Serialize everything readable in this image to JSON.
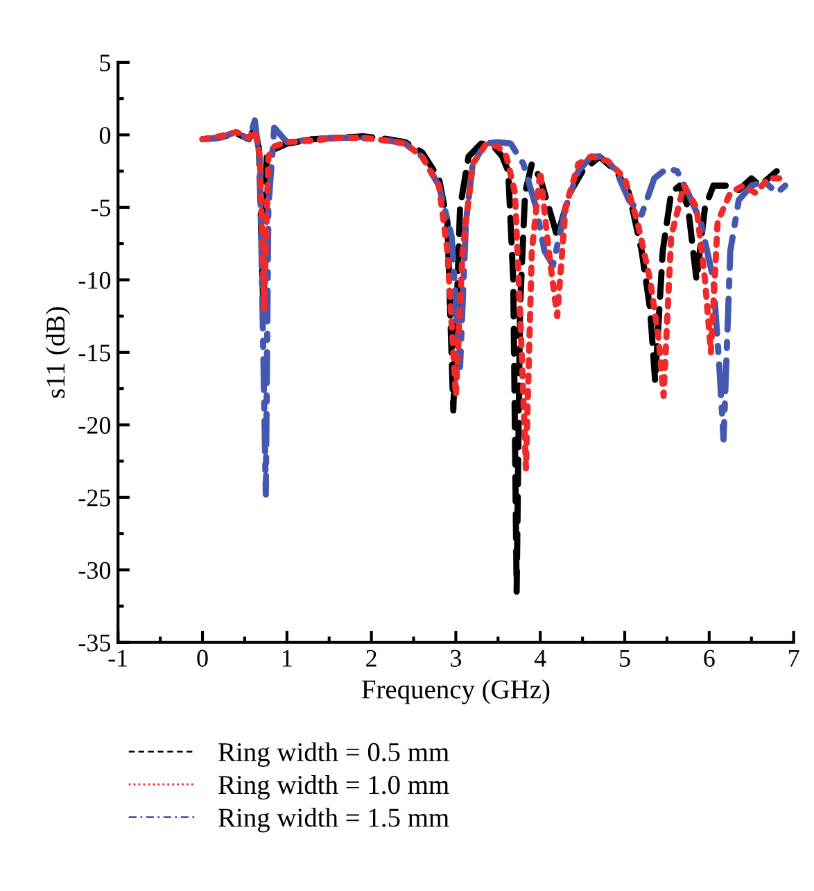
{
  "chart_data": {
    "type": "line",
    "xlabel": "Frequency (GHz)",
    "ylabel": "s11 (dB)",
    "xlim": [
      -1,
      7
    ],
    "ylim": [
      -35,
      5
    ],
    "xticks": [
      -1,
      0,
      1,
      2,
      3,
      4,
      5,
      6,
      7
    ],
    "yticks": [
      -35,
      -30,
      -25,
      -20,
      -15,
      -10,
      -5,
      0,
      5
    ],
    "grid": false,
    "legend": "bottom",
    "series": [
      {
        "name": "Ring width = 0.5 mm",
        "color": "#000000",
        "line_style": "dashed",
        "x": [
          0,
          0.2,
          0.4,
          0.55,
          0.62,
          0.67,
          0.72,
          0.76,
          0.85,
          1.0,
          1.3,
          1.6,
          1.9,
          2.2,
          2.4,
          2.6,
          2.8,
          2.9,
          2.97,
          3.05,
          3.15,
          3.3,
          3.45,
          3.55,
          3.62,
          3.68,
          3.72,
          3.76,
          3.82,
          3.9,
          4.0,
          4.1,
          4.2,
          4.35,
          4.5,
          4.7,
          4.9,
          5.05,
          5.2,
          5.3,
          5.36,
          5.45,
          5.55,
          5.65,
          5.75,
          5.85,
          5.95,
          6.05,
          6.2,
          6.35,
          6.5,
          6.6,
          6.7,
          6.8
        ],
        "values": [
          -0.3,
          -0.2,
          0.1,
          -0.3,
          0.5,
          -1,
          -12,
          -1.5,
          -1,
          -0.6,
          -0.3,
          -0.2,
          -0.1,
          -0.3,
          -0.5,
          -1.2,
          -3,
          -6,
          -19,
          -5,
          -1.5,
          -0.6,
          -0.8,
          -1.5,
          -2.5,
          -10,
          -31.5,
          -12,
          -4,
          -2,
          -3,
          -5,
          -7,
          -4,
          -2.5,
          -1.5,
          -2.5,
          -4,
          -8,
          -12,
          -17,
          -8,
          -4,
          -3.5,
          -5,
          -10,
          -5,
          -3.5,
          -3.5,
          -3.8,
          -3,
          -3.5,
          -3,
          -2.5
        ]
      },
      {
        "name": "Ring width = 1.0 mm",
        "color": "#ee2a2a",
        "line_style": "dotted",
        "x": [
          0,
          0.2,
          0.4,
          0.55,
          0.62,
          0.68,
          0.73,
          0.78,
          0.85,
          1.0,
          1.3,
          1.6,
          1.9,
          2.2,
          2.4,
          2.6,
          2.8,
          2.9,
          3.0,
          3.08,
          3.2,
          3.35,
          3.5,
          3.6,
          3.7,
          3.78,
          3.83,
          3.9,
          4.0,
          4.1,
          4.2,
          4.3,
          4.45,
          4.6,
          4.8,
          5.0,
          5.15,
          5.3,
          5.4,
          5.46,
          5.55,
          5.7,
          5.85,
          5.95,
          6.02,
          6.1,
          6.25,
          6.4,
          6.55,
          6.7,
          6.85
        ],
        "values": [
          -0.3,
          -0.1,
          0.2,
          -0.2,
          0.3,
          -1.5,
          -12,
          -1.5,
          -0.8,
          -0.5,
          -0.4,
          -0.2,
          -0.2,
          -0.4,
          -0.6,
          -1.5,
          -3.5,
          -8,
          -18,
          -8,
          -2,
          -0.7,
          -0.8,
          -1.5,
          -4,
          -15,
          -23,
          -8,
          -2.5,
          -8,
          -12.5,
          -5,
          -2,
          -1.5,
          -1.8,
          -3,
          -6,
          -10,
          -14,
          -18,
          -7,
          -3.5,
          -5,
          -10,
          -15,
          -6,
          -4,
          -3.5,
          -4,
          -3,
          -3
        ]
      },
      {
        "name": "Ring width = 1.5 mm",
        "color": "#4458b0",
        "line_style": "dashdot",
        "x": [
          0,
          0.2,
          0.4,
          0.55,
          0.62,
          0.68,
          0.72,
          0.75,
          0.78,
          0.85,
          1.0,
          1.3,
          1.6,
          1.9,
          2.2,
          2.4,
          2.6,
          2.8,
          2.95,
          3.05,
          3.12,
          3.2,
          3.35,
          3.5,
          3.65,
          3.8,
          3.95,
          4.05,
          4.15,
          4.3,
          4.45,
          4.6,
          4.75,
          4.9,
          5.05,
          5.2,
          5.35,
          5.5,
          5.62,
          5.75,
          5.9,
          6.05,
          6.12,
          6.17,
          6.25,
          6.35,
          6.5,
          6.65,
          6.8,
          6.9
        ],
        "values": [
          -0.3,
          -0.2,
          0.2,
          -0.3,
          1,
          -2,
          -15,
          -24.8,
          -5,
          0.5,
          -0.5,
          -0.3,
          -0.2,
          -0.2,
          -0.4,
          -0.6,
          -1.5,
          -3.5,
          -7,
          -16,
          -6,
          -2,
          -0.6,
          -0.5,
          -0.6,
          -2,
          -5,
          -8,
          -9,
          -5,
          -2.5,
          -1.5,
          -1.5,
          -2.5,
          -4.5,
          -5.5,
          -3,
          -2.3,
          -2.5,
          -4,
          -6,
          -10,
          -16,
          -21,
          -8,
          -4.5,
          -3.5,
          -3.2,
          -4,
          -3.5
        ]
      }
    ]
  }
}
